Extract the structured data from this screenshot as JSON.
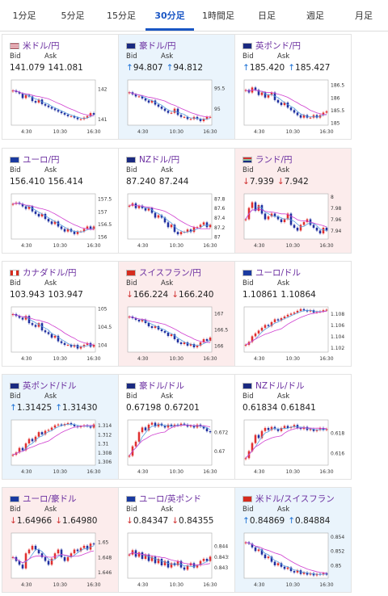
{
  "tabs": [
    {
      "label": "1分足",
      "active": false
    },
    {
      "label": "5分足",
      "active": false
    },
    {
      "label": "15分足",
      "active": false
    },
    {
      "label": "30分足",
      "active": true
    },
    {
      "label": "1時間足",
      "active": false
    },
    {
      "label": "日足",
      "active": false
    },
    {
      "label": "週足",
      "active": false
    },
    {
      "label": "月足",
      "active": false
    }
  ],
  "labels": {
    "bid": "Bid",
    "ask": "Ask"
  },
  "colors": {
    "accent": "#1a56c4",
    "title": "#6b2fa0",
    "up_bg": "#eaf4fc",
    "down_bg": "#fcecec",
    "bull": "#e03030",
    "bear": "#2030a0",
    "ma_short": "#5aa0e0",
    "ma_long": "#d040d0"
  },
  "cards": [
    {
      "pair": "米ドル/円",
      "flag": "flag-us-icon",
      "bid": "141.079",
      "ask": "141.081",
      "dir": "none",
      "bg": "white",
      "chart_data": {
        "type": "candlestick",
        "x_ticks": [
          "4:30",
          "10:30",
          "16:30"
        ],
        "y_ticks": [
          142,
          141
        ],
        "ylim": [
          140.8,
          142.3
        ],
        "close": [
          141.95,
          141.9,
          141.85,
          141.7,
          141.8,
          141.75,
          141.6,
          141.55,
          141.65,
          141.5,
          141.45,
          141.4,
          141.35,
          141.3,
          141.25,
          141.2,
          141.15,
          141.1,
          141.1,
          141.05,
          141.0,
          141.0,
          141.05,
          141.1,
          141.2,
          141.15
        ]
      }
    },
    {
      "pair": "豪ドル/円",
      "flag": "flag-au-icon",
      "bid": "94.807",
      "ask": "94.812",
      "dir": "up",
      "bg": "up",
      "chart_data": {
        "type": "candlestick",
        "x_ticks": [
          "4:30",
          "10:30",
          "16:30"
        ],
        "y_ticks": [
          95.5,
          95
        ],
        "ylim": [
          94.6,
          95.7
        ],
        "close": [
          95.4,
          95.35,
          95.3,
          95.3,
          95.25,
          95.2,
          95.15,
          95.2,
          95.1,
          95.05,
          95.0,
          94.95,
          94.9,
          94.9,
          95.0,
          94.85,
          94.8,
          94.8,
          94.75,
          94.75,
          94.8,
          94.75,
          94.7,
          94.75,
          94.8,
          94.8
        ]
      }
    },
    {
      "pair": "英ポンド/円",
      "flag": "flag-gb-icon",
      "bid": "185.420",
      "ask": "185.427",
      "dir": "up",
      "bg": "white",
      "chart_data": {
        "type": "candlestick",
        "x_ticks": [
          "4:30",
          "10:30",
          "16:30"
        ],
        "y_ticks": [
          186.5,
          186,
          185.5,
          185
        ],
        "ylim": [
          184.9,
          186.7
        ],
        "close": [
          186.3,
          186.2,
          186.4,
          186.3,
          186.1,
          186.2,
          186.0,
          186.1,
          186.2,
          185.9,
          185.8,
          185.7,
          185.8,
          185.6,
          185.5,
          185.4,
          185.3,
          185.2,
          185.3,
          185.2,
          185.2,
          185.3,
          185.2,
          185.3,
          185.4,
          185.45
        ]
      }
    },
    {
      "pair": "ユーロ/円",
      "flag": "flag-eu-icon",
      "bid": "156.410",
      "ask": "156.414",
      "dir": "none",
      "bg": "white",
      "chart_data": {
        "type": "candlestick",
        "x_ticks": [
          "4:30",
          "10:30",
          "16:30"
        ],
        "y_ticks": [
          157.5,
          157,
          156.5,
          156
        ],
        "ylim": [
          155.9,
          157.7
        ],
        "close": [
          157.3,
          157.35,
          157.3,
          157.2,
          157.1,
          157.2,
          157.0,
          156.9,
          156.8,
          156.9,
          156.7,
          156.6,
          156.5,
          156.6,
          156.4,
          156.3,
          156.2,
          156.3,
          156.2,
          156.1,
          156.2,
          156.2,
          156.3,
          156.4,
          156.3,
          156.4
        ]
      }
    },
    {
      "pair": "NZドル/円",
      "flag": "flag-nz-icon",
      "bid": "87.240",
      "ask": "87.244",
      "dir": "none",
      "bg": "white",
      "chart_data": {
        "type": "candlestick",
        "x_ticks": [
          "4:30",
          "10:30",
          "16:30"
        ],
        "y_ticks": [
          87.8,
          87.6,
          87.4,
          87.2,
          87
        ],
        "ylim": [
          86.95,
          87.9
        ],
        "close": [
          87.65,
          87.7,
          87.6,
          87.65,
          87.6,
          87.55,
          87.6,
          87.5,
          87.4,
          87.45,
          87.4,
          87.3,
          87.2,
          87.25,
          87.1,
          87.05,
          87.1,
          87.1,
          87.15,
          87.1,
          87.2,
          87.2,
          87.25,
          87.3,
          87.2,
          87.25
        ]
      }
    },
    {
      "pair": "ランド/円",
      "flag": "flag-za-icon",
      "bid": "7.939",
      "ask": "7.942",
      "dir": "down",
      "bg": "down",
      "chart_data": {
        "type": "candlestick",
        "x_ticks": [
          "4:30",
          "10:30",
          "16:30"
        ],
        "y_ticks": [
          8,
          7.98,
          7.96,
          7.94
        ],
        "ylim": [
          7.925,
          8.005
        ],
        "close": [
          7.96,
          7.98,
          7.99,
          7.975,
          7.985,
          7.97,
          7.96,
          7.965,
          7.97,
          7.965,
          7.96,
          7.955,
          7.96,
          7.97,
          7.95,
          7.945,
          7.94,
          7.95,
          7.955,
          7.96,
          7.95,
          7.945,
          7.94,
          7.935,
          7.945,
          7.94
        ]
      }
    },
    {
      "pair": "カナダドル/円",
      "flag": "flag-ca-icon",
      "bid": "103.943",
      "ask": "103.947",
      "dir": "none",
      "bg": "white",
      "chart_data": {
        "type": "candlestick",
        "x_ticks": [
          "4:30",
          "10:30",
          "16:30"
        ],
        "y_ticks": [
          105,
          104.5,
          104
        ],
        "ylim": [
          103.8,
          105.05
        ],
        "close": [
          104.85,
          104.8,
          104.75,
          104.7,
          104.8,
          104.6,
          104.55,
          104.5,
          104.6,
          104.4,
          104.35,
          104.3,
          104.2,
          104.25,
          104.1,
          104.05,
          104.0,
          104.0,
          103.95,
          104.0,
          103.9,
          103.95,
          104.0,
          104.05,
          103.95,
          104.0
        ]
      }
    },
    {
      "pair": "スイスフラン/円",
      "flag": "flag-ch-icon",
      "bid": "166.224",
      "ask": "166.240",
      "dir": "down",
      "bg": "down",
      "chart_data": {
        "type": "candlestick",
        "x_ticks": [
          "4:30",
          "10:30",
          "16:30"
        ],
        "y_ticks": [
          167,
          166.5,
          166
        ],
        "ylim": [
          165.8,
          167.2
        ],
        "close": [
          166.9,
          166.85,
          166.8,
          166.75,
          166.8,
          166.7,
          166.6,
          166.55,
          166.6,
          166.5,
          166.45,
          166.4,
          166.3,
          166.35,
          166.2,
          166.1,
          166.05,
          166.1,
          166.0,
          166.05,
          165.95,
          166.0,
          166.1,
          166.2,
          166.15,
          166.25
        ]
      }
    },
    {
      "pair": "ユーロ/ドル",
      "flag": "flag-eu-icon",
      "bid": "1.10861",
      "ask": "1.10864",
      "dir": "none",
      "bg": "white",
      "chart_data": {
        "type": "candlestick",
        "x_ticks": [
          "4:30",
          "10:30",
          "16:30"
        ],
        "y_ticks": [
          1.108,
          1.106,
          1.104,
          1.102
        ],
        "ylim": [
          1.1012,
          1.1092
        ],
        "close": [
          1.1025,
          1.103,
          1.104,
          1.1045,
          1.105,
          1.1055,
          1.106,
          1.1058,
          1.1065,
          1.107,
          1.1068,
          1.1072,
          1.1075,
          1.1078,
          1.108,
          1.1082,
          1.1085,
          1.1088,
          1.1086,
          1.1084,
          1.1086,
          1.1082,
          1.1083,
          1.1084,
          1.1086,
          1.1087
        ]
      }
    },
    {
      "pair": "英ポンド/ドル",
      "flag": "flag-gb-icon",
      "bid": "1.31425",
      "ask": "1.31430",
      "dir": "up",
      "bg": "up",
      "chart_data": {
        "type": "candlestick",
        "x_ticks": [
          "4:30",
          "10:30",
          "16:30"
        ],
        "y_ticks": [
          1.314,
          1.312,
          1.31,
          1.308,
          1.306
        ],
        "ylim": [
          1.3052,
          1.3152
        ],
        "close": [
          1.3075,
          1.308,
          1.309,
          1.3085,
          1.31,
          1.311,
          1.3105,
          1.3115,
          1.3125,
          1.312,
          1.3128,
          1.313,
          1.3135,
          1.314,
          1.3142,
          1.314,
          1.3143,
          1.3145,
          1.3142,
          1.3138,
          1.3136,
          1.3138,
          1.314,
          1.3138,
          1.3135,
          1.3142
        ]
      }
    },
    {
      "pair": "豪ドル/ドル",
      "flag": "flag-au-icon",
      "bid": "0.67198",
      "ask": "0.67201",
      "dir": "none",
      "bg": "white",
      "chart_data": {
        "type": "candlestick",
        "x_ticks": [
          "4:30",
          "10:30",
          "16:30"
        ],
        "y_ticks": [
          0.672,
          0.67
        ],
        "ylim": [
          0.6685,
          0.6733
        ],
        "close": [
          0.6695,
          0.6705,
          0.671,
          0.672,
          0.6725,
          0.6722,
          0.6728,
          0.673,
          0.6726,
          0.6729,
          0.6727,
          0.6725,
          0.6728,
          0.6726,
          0.6728,
          0.6727,
          0.6729,
          0.6728,
          0.6726,
          0.6727,
          0.6725,
          0.6728,
          0.6726,
          0.6724,
          0.6721,
          0.672
        ]
      }
    },
    {
      "pair": "NZドル/ドル",
      "flag": "flag-nz-icon",
      "bid": "0.61834",
      "ask": "0.61841",
      "dir": "none",
      "bg": "white",
      "chart_data": {
        "type": "candlestick",
        "x_ticks": [
          "4:30",
          "10:30",
          "16:30"
        ],
        "y_ticks": [
          0.618,
          0.616
        ],
        "ylim": [
          0.6148,
          0.6193
        ],
        "close": [
          0.6155,
          0.6162,
          0.617,
          0.6178,
          0.6175,
          0.6182,
          0.6185,
          0.6183,
          0.6186,
          0.6184,
          0.6182,
          0.6185,
          0.6187,
          0.6185,
          0.6186,
          0.6188,
          0.6185,
          0.6184,
          0.6186,
          0.6183,
          0.6184,
          0.6182,
          0.6183,
          0.6185,
          0.6183,
          0.6184
        ]
      }
    },
    {
      "pair": "ユーロ/豪ドル",
      "flag": "flag-eu-icon",
      "bid": "1.64966",
      "ask": "1.64980",
      "dir": "down",
      "bg": "down",
      "chart_data": {
        "type": "candlestick",
        "x_ticks": [
          "4:30",
          "10:30",
          "16:30"
        ],
        "y_ticks": [
          1.65,
          1.648,
          1.646
        ],
        "ylim": [
          1.6452,
          1.6512
        ],
        "close": [
          1.648,
          1.6475,
          1.647,
          1.6465,
          1.6485,
          1.649,
          1.6495,
          1.649,
          1.6485,
          1.648,
          1.6475,
          1.647,
          1.6478,
          1.6485,
          1.649,
          1.648,
          1.6475,
          1.648,
          1.6485,
          1.649,
          1.6488,
          1.6492,
          1.6495,
          1.649,
          1.6498,
          1.6497
        ]
      }
    },
    {
      "pair": "ユーロ/英ポンド",
      "flag": "flag-eu-icon",
      "bid": "0.84347",
      "ask": "0.84355",
      "dir": "down",
      "bg": "white",
      "chart_data": {
        "type": "candlestick",
        "x_ticks": [
          "4:30",
          "10:30",
          "16:30"
        ],
        "y_ticks": [
          0.844,
          0.8435,
          0.843
        ],
        "ylim": [
          0.8425,
          0.8446
        ],
        "close": [
          0.8436,
          0.8438,
          0.8435,
          0.8437,
          0.8434,
          0.8436,
          0.8433,
          0.8435,
          0.8432,
          0.8434,
          0.8431,
          0.8433,
          0.843,
          0.8432,
          0.8431,
          0.8433,
          0.843,
          0.8429,
          0.8431,
          0.8432,
          0.843,
          0.8431,
          0.8433,
          0.8434,
          0.8433,
          0.8435
        ]
      }
    },
    {
      "pair": "米ドル/スイスフラン",
      "flag": "flag-ch-icon",
      "bid": "0.84869",
      "ask": "0.84884",
      "dir": "up",
      "bg": "up",
      "chart_data": {
        "type": "candlestick",
        "x_ticks": [
          "4:30",
          "10:30",
          "16:30"
        ],
        "y_ticks": [
          0.854,
          0.852,
          0.85
        ],
        "ylim": [
          0.8482,
          0.8545
        ],
        "close": [
          0.8532,
          0.853,
          0.8525,
          0.852,
          0.8522,
          0.8515,
          0.851,
          0.8512,
          0.8505,
          0.85,
          0.8503,
          0.8498,
          0.8495,
          0.8497,
          0.8492,
          0.849,
          0.8493,
          0.8488,
          0.849,
          0.8487,
          0.8489,
          0.8486,
          0.8488,
          0.8487,
          0.8489,
          0.8487
        ]
      }
    }
  ]
}
